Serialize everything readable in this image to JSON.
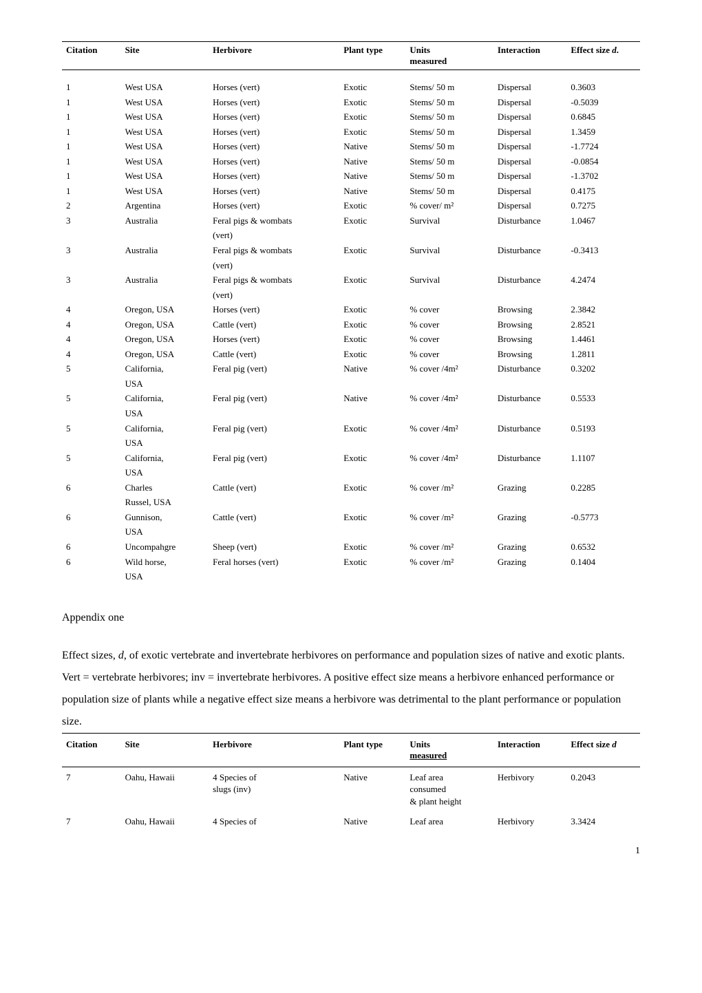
{
  "table1": {
    "headers": {
      "citation": "Citation",
      "site": "Site",
      "herbivore": "Herbivore",
      "plant_type": "Plant type",
      "units": "Units",
      "units_sub": "measured",
      "interaction": "Interaction",
      "effect": "Effect size d."
    },
    "rows": [
      {
        "citation": "1",
        "site": "West USA",
        "herbivore": "Horses (vert)",
        "plant": "Exotic",
        "units": "Stems/ 50 m",
        "interaction": "Dispersal",
        "effect": "0.3603"
      },
      {
        "citation": "1",
        "site": "West USA",
        "herbivore": "Horses (vert)",
        "plant": "Exotic",
        "units": "Stems/ 50 m",
        "interaction": "Dispersal",
        "effect": "-0.5039"
      },
      {
        "citation": "1",
        "site": "West USA",
        "herbivore": "Horses (vert)",
        "plant": "Exotic",
        "units": "Stems/ 50 m",
        "interaction": "Dispersal",
        "effect": "0.6845"
      },
      {
        "citation": "1",
        "site": "West USA",
        "herbivore": "Horses (vert)",
        "plant": "Exotic",
        "units": "Stems/ 50 m",
        "interaction": "Dispersal",
        "effect": "1.3459"
      },
      {
        "citation": "1",
        "site": "West USA",
        "herbivore": "Horses (vert)",
        "plant": "Native",
        "units": "Stems/ 50 m",
        "interaction": "Dispersal",
        "effect": "-1.7724"
      },
      {
        "citation": "1",
        "site": "West USA",
        "herbivore": "Horses (vert)",
        "plant": "Native",
        "units": "Stems/ 50 m",
        "interaction": "Dispersal",
        "effect": "-0.0854"
      },
      {
        "citation": "1",
        "site": "West USA",
        "herbivore": "Horses (vert)",
        "plant": "Native",
        "units": "Stems/ 50 m",
        "interaction": "Dispersal",
        "effect": "-1.3702"
      },
      {
        "citation": "1",
        "site": "West USA",
        "herbivore": "Horses (vert)",
        "plant": "Native",
        "units": "Stems/ 50 m",
        "interaction": "Dispersal",
        "effect": "0.4175"
      },
      {
        "citation": "2",
        "site": "Argentina",
        "herbivore": "Horses (vert)",
        "plant": "Exotic",
        "units": "% cover/ m²",
        "interaction": "Dispersal",
        "effect": "0.7275"
      },
      {
        "citation": "3",
        "site": "Australia",
        "herbivore": "Feral pigs & wombats",
        "plant": "Exotic",
        "units": "Survival",
        "interaction": "Disturbance",
        "effect": "1.0467"
      },
      {
        "citation": "",
        "site": "",
        "herbivore": "(vert)",
        "plant": "",
        "units": "",
        "interaction": "",
        "effect": ""
      },
      {
        "citation": "3",
        "site": "Australia",
        "herbivore": "Feral pigs & wombats",
        "plant": "Exotic",
        "units": "Survival",
        "interaction": "Disturbance",
        "effect": "-0.3413"
      },
      {
        "citation": "",
        "site": "",
        "herbivore": "(vert)",
        "plant": "",
        "units": "",
        "interaction": "",
        "effect": ""
      },
      {
        "citation": "3",
        "site": "Australia",
        "herbivore": "Feral pigs & wombats",
        "plant": "Exotic",
        "units": "Survival",
        "interaction": "Disturbance",
        "effect": "4.2474"
      },
      {
        "citation": "",
        "site": "",
        "herbivore": "(vert)",
        "plant": "",
        "units": "",
        "interaction": "",
        "effect": ""
      },
      {
        "citation": "4",
        "site": "Oregon, USA",
        "herbivore": "Horses (vert)",
        "plant": "Exotic",
        "units": "% cover",
        "interaction": "Browsing",
        "effect": "2.3842"
      },
      {
        "citation": "4",
        "site": "Oregon, USA",
        "herbivore": "Cattle (vert)",
        "plant": "Exotic",
        "units": "% cover",
        "interaction": "Browsing",
        "effect": "2.8521"
      },
      {
        "citation": "4",
        "site": "Oregon, USA",
        "herbivore": "Horses (vert)",
        "plant": "Exotic",
        "units": "% cover",
        "interaction": "Browsing",
        "effect": "1.4461"
      },
      {
        "citation": "4",
        "site": "Oregon, USA",
        "herbivore": "Cattle (vert)",
        "plant": "Exotic",
        "units": "% cover",
        "interaction": "Browsing",
        "effect": "1.2811"
      },
      {
        "citation": "5",
        "site": "California,",
        "herbivore": "Feral pig (vert)",
        "plant": "Native",
        "units": "% cover /4m²",
        "interaction": "Disturbance",
        "effect": "0.3202"
      },
      {
        "citation": "",
        "site": "USA",
        "herbivore": "",
        "plant": "",
        "units": "",
        "interaction": "",
        "effect": ""
      },
      {
        "citation": "5",
        "site": "California,",
        "herbivore": "Feral pig (vert)",
        "plant": "Native",
        "units": "% cover /4m²",
        "interaction": "Disturbance",
        "effect": "0.5533"
      },
      {
        "citation": "",
        "site": "USA",
        "herbivore": "",
        "plant": "",
        "units": "",
        "interaction": "",
        "effect": ""
      },
      {
        "citation": "5",
        "site": "California,",
        "herbivore": "Feral pig (vert)",
        "plant": "Exotic",
        "units": "% cover /4m²",
        "interaction": "Disturbance",
        "effect": "0.5193"
      },
      {
        "citation": "",
        "site": "USA",
        "herbivore": "",
        "plant": "",
        "units": "",
        "interaction": "",
        "effect": ""
      },
      {
        "citation": "5",
        "site": "California,",
        "herbivore": "Feral pig (vert)",
        "plant": "Exotic",
        "units": "% cover /4m²",
        "interaction": "Disturbance",
        "effect": "1.1107"
      },
      {
        "citation": "",
        "site": "USA",
        "herbivore": "",
        "plant": "",
        "units": "",
        "interaction": "",
        "effect": ""
      },
      {
        "citation": "6",
        "site": "Charles",
        "herbivore": "Cattle (vert)",
        "plant": "Exotic",
        "units": "% cover /m²",
        "interaction": "Grazing",
        "effect": "0.2285"
      },
      {
        "citation": "",
        "site": "Russel, USA",
        "herbivore": "",
        "plant": "",
        "units": "",
        "interaction": "",
        "effect": ""
      },
      {
        "citation": "6",
        "site": "Gunnison,",
        "herbivore": "Cattle (vert)",
        "plant": "Exotic",
        "units": "% cover /m²",
        "interaction": "Grazing",
        "effect": "-0.5773"
      },
      {
        "citation": "",
        "site": "USA",
        "herbivore": "",
        "plant": "",
        "units": "",
        "interaction": "",
        "effect": ""
      },
      {
        "citation": "6",
        "site": "Uncompahgre",
        "herbivore": "Sheep (vert)",
        "plant": "Exotic",
        "units": "% cover /m²",
        "interaction": "Grazing",
        "effect": "0.6532"
      },
      {
        "citation": "6",
        "site": "Wild horse,",
        "herbivore": "Feral horses (vert)",
        "plant": "Exotic",
        "units": "% cover /m²",
        "interaction": "Grazing",
        "effect": "0.1404"
      },
      {
        "citation": "",
        "site": "USA",
        "herbivore": "",
        "plant": "",
        "units": "",
        "interaction": "",
        "effect": ""
      }
    ]
  },
  "appendix": {
    "title": "Appendix one",
    "body": "Effect sizes, d, of exotic vertebrate and invertebrate herbivores on performance and population sizes of native and exotic plants. Vert = vertebrate herbivores; inv = invertebrate herbivores. A positive effect size means a herbivore enhanced performance or population size of plants while a negative effect size means a herbivore was detrimental to the plant performance or population size."
  },
  "table2": {
    "headers": {
      "citation": "Citation",
      "site": "Site",
      "herbivore": "Herbivore",
      "plant_type": "Plant type",
      "units": "Units",
      "units_sub": "measured",
      "interaction": "Interaction",
      "effect": "Effect size d"
    },
    "rows": [
      {
        "citation": "7",
        "site": "Oahu, Hawaii",
        "herb1": "4 Species of",
        "herb2": "slugs (inv)",
        "plant": "Native",
        "units1": "Leaf area",
        "units2": "consumed",
        "units3": "& plant height",
        "interaction": "Herbivory",
        "effect": "0.2043"
      },
      {
        "citation": "7",
        "site": "Oahu, Hawaii",
        "herb1": "4 Species of",
        "herb2": "",
        "plant": "Native",
        "units1": "Leaf area",
        "units2": "",
        "units3": "",
        "interaction": "Herbivory",
        "effect": "3.3424"
      }
    ]
  },
  "page_number": "1"
}
